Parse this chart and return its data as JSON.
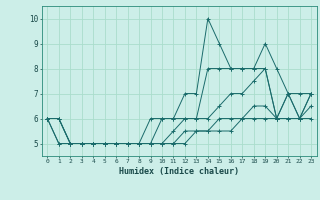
{
  "title": "",
  "xlabel": "Humidex (Indice chaleur)",
  "bg_color": "#cceee8",
  "line_color": "#1a6b6b",
  "grid_color": "#aaddcc",
  "xlim": [
    -0.5,
    23.5
  ],
  "ylim": [
    4.5,
    10.5
  ],
  "xticks": [
    0,
    1,
    2,
    3,
    4,
    5,
    6,
    7,
    8,
    9,
    10,
    11,
    12,
    13,
    14,
    15,
    16,
    17,
    18,
    19,
    20,
    21,
    22,
    23
  ],
  "yticks": [
    5,
    6,
    7,
    8,
    9,
    10
  ],
  "series": [
    [
      6.0,
      6.0,
      5.0,
      5.0,
      5.0,
      5.0,
      5.0,
      5.0,
      5.0,
      6.0,
      6.0,
      6.0,
      7.0,
      7.0,
      10.0,
      9.0,
      8.0,
      8.0,
      8.0,
      9.0,
      8.0,
      7.0,
      6.0,
      7.0
    ],
    [
      6.0,
      6.0,
      5.0,
      5.0,
      5.0,
      5.0,
      5.0,
      5.0,
      5.0,
      5.0,
      6.0,
      6.0,
      6.0,
      6.0,
      8.0,
      8.0,
      8.0,
      8.0,
      8.0,
      8.0,
      6.0,
      7.0,
      7.0,
      7.0
    ],
    [
      6.0,
      6.0,
      5.0,
      5.0,
      5.0,
      5.0,
      5.0,
      5.0,
      5.0,
      5.0,
      5.0,
      5.5,
      6.0,
      6.0,
      6.0,
      6.5,
      7.0,
      7.0,
      7.5,
      8.0,
      6.0,
      7.0,
      6.0,
      7.0
    ],
    [
      6.0,
      5.0,
      5.0,
      5.0,
      5.0,
      5.0,
      5.0,
      5.0,
      5.0,
      5.0,
      5.0,
      5.0,
      5.5,
      5.5,
      5.5,
      6.0,
      6.0,
      6.0,
      6.5,
      6.5,
      6.0,
      6.0,
      6.0,
      6.0
    ],
    [
      6.0,
      5.0,
      5.0,
      5.0,
      5.0,
      5.0,
      5.0,
      5.0,
      5.0,
      5.0,
      5.0,
      5.0,
      5.0,
      5.5,
      5.5,
      5.5,
      5.5,
      6.0,
      6.0,
      6.0,
      6.0,
      6.0,
      6.0,
      6.5
    ]
  ]
}
